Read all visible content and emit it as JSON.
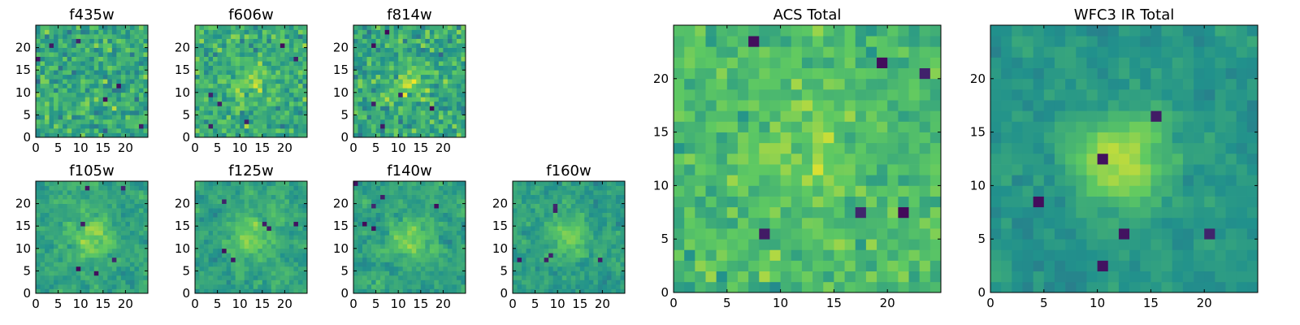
{
  "figure": {
    "description": "Multi-band cutout panels",
    "colormap": {
      "name": "viridis",
      "stops": [
        "#440154",
        "#3b528b",
        "#21918c",
        "#5ec962",
        "#fde725"
      ]
    }
  },
  "chart_data": [
    {
      "id": "f435w",
      "type": "heatmap",
      "title": "f435w",
      "grid_size": 25,
      "xlim": [
        0,
        25
      ],
      "ylim": [
        0,
        25
      ],
      "xticks": [
        0,
        5,
        10,
        15,
        20
      ],
      "yticks": [
        0,
        5,
        10,
        15,
        20
      ],
      "value_range": [
        0,
        1
      ],
      "seed": 11,
      "peak": 0.0,
      "smooth": 0,
      "mean": 0.6,
      "noise": 0.22
    },
    {
      "id": "f606w",
      "type": "heatmap",
      "title": "f606w",
      "grid_size": 25,
      "xlim": [
        0,
        25
      ],
      "ylim": [
        0,
        25
      ],
      "xticks": [
        0,
        5,
        10,
        15,
        20
      ],
      "yticks": [
        0,
        5,
        10,
        15,
        20
      ],
      "value_range": [
        0,
        1
      ],
      "seed": 23,
      "peak": 0.15,
      "smooth": 0,
      "mean": 0.62,
      "noise": 0.2
    },
    {
      "id": "f814w",
      "type": "heatmap",
      "title": "f814w",
      "grid_size": 25,
      "xlim": [
        0,
        25
      ],
      "ylim": [
        0,
        25
      ],
      "xticks": [
        0,
        5,
        10,
        15,
        20
      ],
      "yticks": [
        0,
        5,
        10,
        15,
        20
      ],
      "value_range": [
        0,
        1
      ],
      "seed": 37,
      "peak": 0.18,
      "smooth": 0,
      "mean": 0.6,
      "noise": 0.22
    },
    {
      "id": "f105w",
      "type": "heatmap",
      "title": "f105w",
      "grid_size": 25,
      "xlim": [
        0,
        25
      ],
      "ylim": [
        0,
        25
      ],
      "xticks": [
        0,
        5,
        10,
        15,
        20
      ],
      "yticks": [
        0,
        5,
        10,
        15,
        20
      ],
      "value_range": [
        0,
        1
      ],
      "seed": 41,
      "peak": 0.25,
      "smooth": 1,
      "mean": 0.58,
      "noise": 0.2
    },
    {
      "id": "f125w",
      "type": "heatmap",
      "title": "f125w",
      "grid_size": 25,
      "xlim": [
        0,
        25
      ],
      "ylim": [
        0,
        25
      ],
      "xticks": [
        0,
        5,
        10,
        15,
        20
      ],
      "yticks": [
        0,
        5,
        10,
        15,
        20
      ],
      "value_range": [
        0,
        1
      ],
      "seed": 53,
      "peak": 0.25,
      "smooth": 1,
      "mean": 0.58,
      "noise": 0.2
    },
    {
      "id": "f140w",
      "type": "heatmap",
      "title": "f140w",
      "grid_size": 25,
      "xlim": [
        0,
        25
      ],
      "ylim": [
        0,
        25
      ],
      "xticks": [
        0,
        5,
        10,
        15,
        20
      ],
      "yticks": [
        0,
        5,
        10,
        15,
        20
      ],
      "value_range": [
        0,
        1
      ],
      "seed": 67,
      "peak": 0.25,
      "smooth": 1,
      "mean": 0.58,
      "noise": 0.2
    },
    {
      "id": "f160w",
      "type": "heatmap",
      "title": "f160w",
      "grid_size": 25,
      "xlim": [
        0,
        25
      ],
      "ylim": [
        0,
        25
      ],
      "xticks": [
        0,
        5,
        10,
        15,
        20
      ],
      "yticks": [
        0,
        5,
        10,
        15,
        20
      ],
      "value_range": [
        0,
        1
      ],
      "seed": 79,
      "peak": 0.22,
      "smooth": 1,
      "mean": 0.56,
      "noise": 0.2
    },
    {
      "id": "acs_total",
      "type": "heatmap",
      "title": "ACS Total",
      "grid_size": 25,
      "xlim": [
        0,
        25
      ],
      "ylim": [
        0,
        25
      ],
      "xticks": [
        0,
        5,
        10,
        15,
        20
      ],
      "yticks": [
        0,
        5,
        10,
        15,
        20
      ],
      "value_range": [
        0,
        1
      ],
      "seed": 97,
      "peak": 0.12,
      "smooth": 0,
      "mean": 0.68,
      "noise": 0.15
    },
    {
      "id": "wfc3_ir_total",
      "type": "heatmap",
      "title": "WFC3 IR Total",
      "grid_size": 25,
      "xlim": [
        0,
        25
      ],
      "ylim": [
        0,
        25
      ],
      "xticks": [
        0,
        5,
        10,
        15,
        20
      ],
      "yticks": [
        0,
        5,
        10,
        15,
        20
      ],
      "value_range": [
        0,
        1
      ],
      "seed": 113,
      "peak": 0.4,
      "smooth": 1,
      "mean": 0.52,
      "noise": 0.15
    }
  ]
}
